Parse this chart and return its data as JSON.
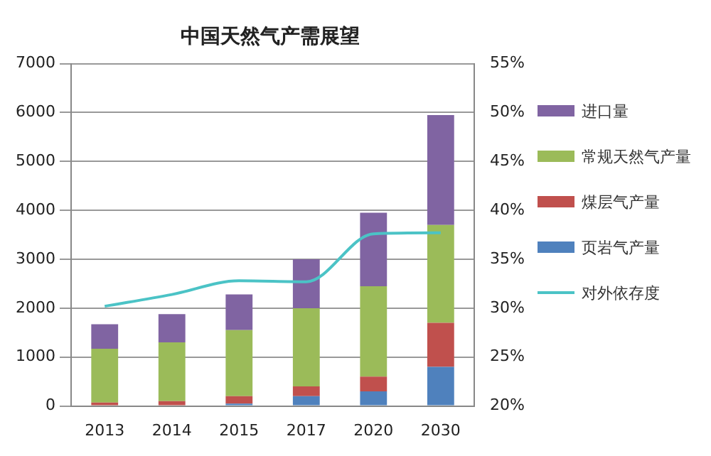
{
  "chart_data": {
    "type": "bar",
    "title": "中国天然气产需展望",
    "categories": [
      "2013",
      "2014",
      "2015",
      "2017",
      "2020",
      "2030"
    ],
    "stacked": true,
    "series": [
      {
        "name": "页岩气产量",
        "color": "#4f81bd",
        "values": [
          0,
          0,
          50,
          200,
          300,
          800
        ]
      },
      {
        "name": "煤层气产量",
        "color": "#c0504d",
        "values": [
          70,
          100,
          150,
          200,
          300,
          900
        ]
      },
      {
        "name": "常规天然气产量",
        "color": "#9bbb59",
        "values": [
          1100,
          1200,
          1350,
          1600,
          1850,
          2000
        ]
      },
      {
        "name": "进口量",
        "color": "#8064a2",
        "values": [
          500,
          580,
          730,
          1000,
          1500,
          2250
        ]
      },
      {
        "name": "对外依存度",
        "type": "line",
        "axis": "y2",
        "color": "#4bc3c6",
        "values": [
          30.2,
          31.4,
          32.8,
          32.7,
          37.6,
          37.7
        ]
      }
    ],
    "ylim": [
      0,
      7000
    ],
    "yticks": [
      0,
      1000,
      2000,
      3000,
      4000,
      5000,
      6000,
      7000
    ],
    "y2lim": [
      20,
      55
    ],
    "y2ticks": [
      {
        "value": 20,
        "label": "20%"
      },
      {
        "value": 25,
        "label": "25%"
      },
      {
        "value": 30,
        "label": "30%"
      },
      {
        "value": 35,
        "label": "35%"
      },
      {
        "value": 40,
        "label": "40%"
      },
      {
        "value": 45,
        "label": "45%"
      },
      {
        "value": 50,
        "label": "50%"
      },
      {
        "value": 55,
        "label": "55%"
      }
    ],
    "grid": "y",
    "legend": "right",
    "marker": "none"
  }
}
